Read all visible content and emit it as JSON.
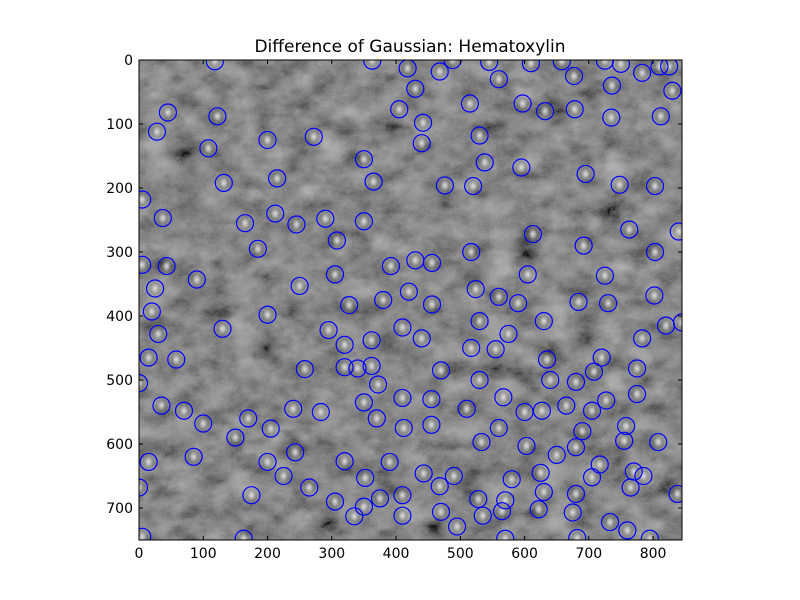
{
  "figure": {
    "title": "Difference of Gaussian: Hematoxylin"
  },
  "chart_data": {
    "type": "scatter",
    "title": "Difference of Gaussian: Hematoxylin",
    "xlabel": "",
    "ylabel": "",
    "xlim": [
      0,
      845
    ],
    "ylim": [
      750,
      0
    ],
    "x_ticks": [
      0,
      100,
      200,
      300,
      400,
      500,
      600,
      700,
      800
    ],
    "y_ticks": [
      0,
      100,
      200,
      300,
      400,
      500,
      600,
      700
    ],
    "x_tick_labels": [
      "0",
      "100",
      "200",
      "300",
      "400",
      "500",
      "600",
      "700",
      "800"
    ],
    "y_tick_labels": [
      "0",
      "100",
      "200",
      "300",
      "400",
      "500",
      "600",
      "700"
    ],
    "marker": "circle-outline",
    "marker_color": "#0000ff",
    "background_image": "grayscale-tissue-micrograph",
    "points": [
      [
        118,
        2
      ],
      [
        363,
        1
      ],
      [
        488,
        0
      ],
      [
        545,
        3
      ],
      [
        610,
        5
      ],
      [
        658,
        2
      ],
      [
        725,
        1
      ],
      [
        750,
        6
      ],
      [
        810,
        10
      ],
      [
        825,
        10
      ],
      [
        418,
        13
      ],
      [
        468,
        18
      ],
      [
        560,
        30
      ],
      [
        677,
        25
      ],
      [
        783,
        20
      ],
      [
        736,
        40
      ],
      [
        430,
        45
      ],
      [
        830,
        48
      ],
      [
        45,
        82
      ],
      [
        122,
        88
      ],
      [
        405,
        77
      ],
      [
        515,
        68
      ],
      [
        597,
        68
      ],
      [
        632,
        80
      ],
      [
        678,
        77
      ],
      [
        735,
        90
      ],
      [
        812,
        88
      ],
      [
        28,
        112
      ],
      [
        442,
        98
      ],
      [
        200,
        125
      ],
      [
        272,
        120
      ],
      [
        108,
        138
      ],
      [
        440,
        130
      ],
      [
        530,
        118
      ],
      [
        350,
        155
      ],
      [
        538,
        160
      ],
      [
        595,
        168
      ],
      [
        695,
        178
      ],
      [
        132,
        192
      ],
      [
        215,
        185
      ],
      [
        365,
        190
      ],
      [
        476,
        196
      ],
      [
        520,
        197
      ],
      [
        748,
        195
      ],
      [
        803,
        197
      ],
      [
        5,
        218
      ],
      [
        37,
        247
      ],
      [
        165,
        255
      ],
      [
        290,
        248
      ],
      [
        350,
        252
      ],
      [
        245,
        257
      ],
      [
        212,
        240
      ],
      [
        613,
        272
      ],
      [
        763,
        265
      ],
      [
        308,
        282
      ],
      [
        185,
        295
      ],
      [
        517,
        300
      ],
      [
        692,
        290
      ],
      [
        803,
        300
      ],
      [
        840,
        268
      ],
      [
        5,
        320
      ],
      [
        43,
        322
      ],
      [
        90,
        343
      ],
      [
        392,
        322
      ],
      [
        430,
        313
      ],
      [
        456,
        317
      ],
      [
        605,
        335
      ],
      [
        725,
        337
      ],
      [
        25,
        357
      ],
      [
        250,
        353
      ],
      [
        305,
        335
      ],
      [
        327,
        383
      ],
      [
        380,
        375
      ],
      [
        420,
        362
      ],
      [
        456,
        382
      ],
      [
        524,
        358
      ],
      [
        560,
        370
      ],
      [
        590,
        380
      ],
      [
        684,
        378
      ],
      [
        730,
        380
      ],
      [
        20,
        393
      ],
      [
        802,
        368
      ],
      [
        130,
        420
      ],
      [
        200,
        398
      ],
      [
        295,
        422
      ],
      [
        410,
        418
      ],
      [
        530,
        408
      ],
      [
        630,
        408
      ],
      [
        783,
        435
      ],
      [
        820,
        415
      ],
      [
        845,
        410
      ],
      [
        30,
        428
      ],
      [
        362,
        438
      ],
      [
        440,
        435
      ],
      [
        320,
        445
      ],
      [
        517,
        450
      ],
      [
        575,
        428
      ],
      [
        15,
        465
      ],
      [
        58,
        468
      ],
      [
        555,
        452
      ],
      [
        320,
        480
      ],
      [
        340,
        482
      ],
      [
        362,
        478
      ],
      [
        470,
        485
      ],
      [
        635,
        468
      ],
      [
        708,
        487
      ],
      [
        720,
        465
      ],
      [
        258,
        483
      ],
      [
        0,
        505
      ],
      [
        372,
        507
      ],
      [
        530,
        500
      ],
      [
        640,
        500
      ],
      [
        680,
        503
      ],
      [
        775,
        482
      ],
      [
        35,
        540
      ],
      [
        70,
        548
      ],
      [
        100,
        568
      ],
      [
        170,
        560
      ],
      [
        205,
        576
      ],
      [
        240,
        545
      ],
      [
        283,
        550
      ],
      [
        350,
        535
      ],
      [
        410,
        528
      ],
      [
        455,
        530
      ],
      [
        510,
        545
      ],
      [
        567,
        527
      ],
      [
        600,
        550
      ],
      [
        627,
        548
      ],
      [
        705,
        548
      ],
      [
        727,
        532
      ],
      [
        775,
        522
      ],
      [
        370,
        560
      ],
      [
        412,
        575
      ],
      [
        455,
        570
      ],
      [
        560,
        575
      ],
      [
        665,
        540
      ],
      [
        150,
        590
      ],
      [
        533,
        597
      ],
      [
        603,
        603
      ],
      [
        690,
        580
      ],
      [
        758,
        572
      ],
      [
        755,
        595
      ],
      [
        808,
        597
      ],
      [
        15,
        628
      ],
      [
        85,
        620
      ],
      [
        200,
        628
      ],
      [
        225,
        650
      ],
      [
        243,
        613
      ],
      [
        320,
        627
      ],
      [
        390,
        628
      ],
      [
        443,
        646
      ],
      [
        490,
        650
      ],
      [
        580,
        655
      ],
      [
        625,
        645
      ],
      [
        650,
        617
      ],
      [
        680,
        605
      ],
      [
        717,
        632
      ],
      [
        705,
        652
      ],
      [
        770,
        643
      ],
      [
        765,
        668
      ],
      [
        0,
        668
      ],
      [
        175,
        680
      ],
      [
        265,
        668
      ],
      [
        305,
        690
      ],
      [
        352,
        653
      ],
      [
        375,
        685
      ],
      [
        410,
        680
      ],
      [
        468,
        666
      ],
      [
        528,
        686
      ],
      [
        570,
        688
      ],
      [
        630,
        675
      ],
      [
        680,
        678
      ],
      [
        785,
        650
      ],
      [
        838,
        678
      ],
      [
        335,
        713
      ],
      [
        350,
        698
      ],
      [
        410,
        712
      ],
      [
        470,
        706
      ],
      [
        495,
        729
      ],
      [
        535,
        712
      ],
      [
        565,
        705
      ],
      [
        622,
        702
      ],
      [
        675,
        707
      ],
      [
        733,
        722
      ],
      [
        760,
        735
      ],
      [
        795,
        748
      ],
      [
        5,
        745
      ],
      [
        163,
        748
      ],
      [
        570,
        748
      ],
      [
        682,
        747
      ]
    ]
  }
}
